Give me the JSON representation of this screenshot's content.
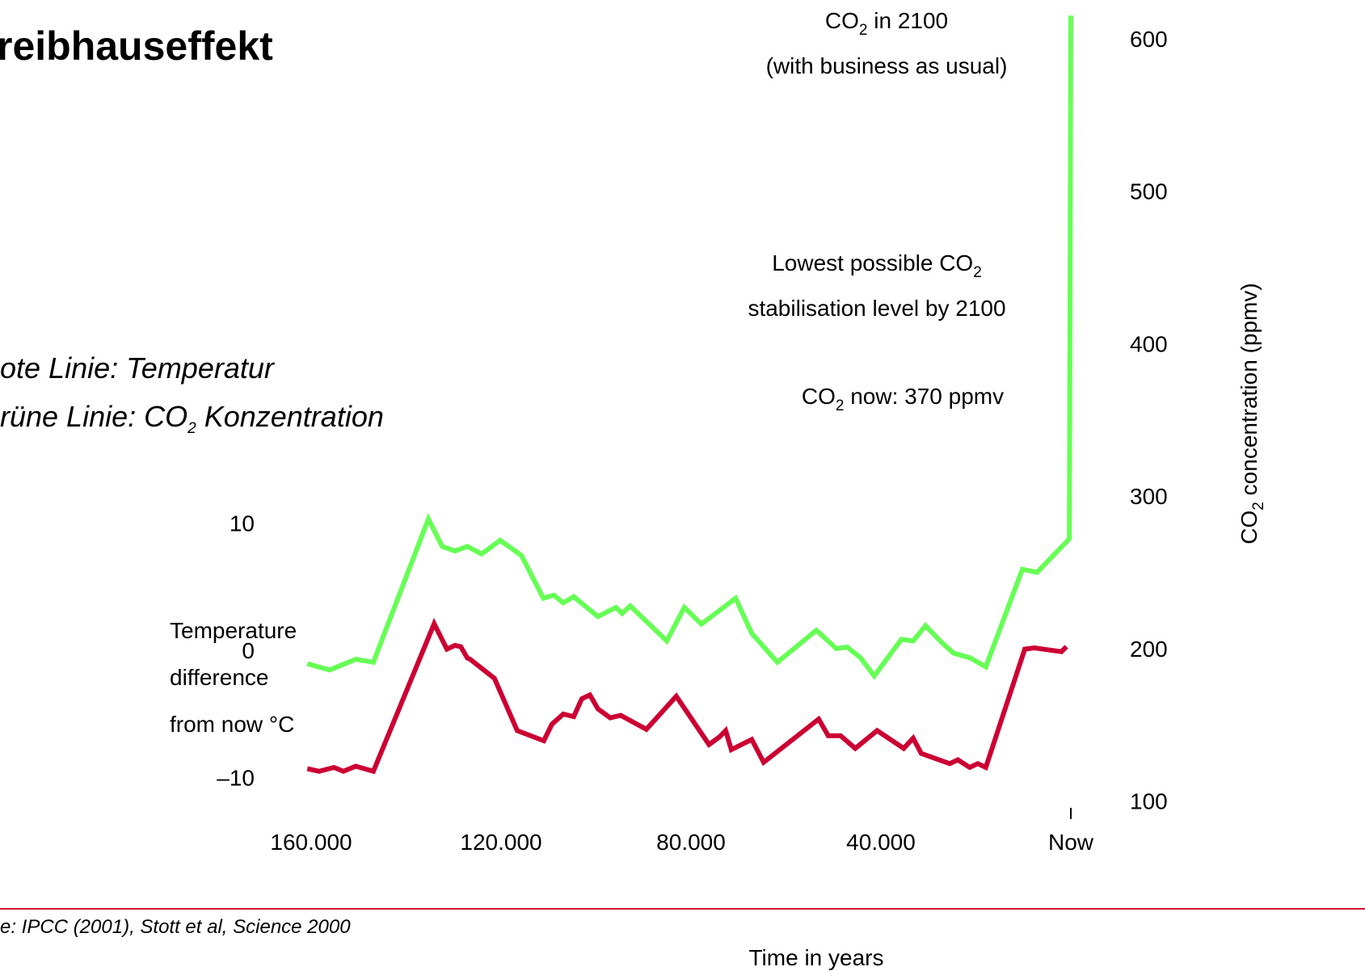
{
  "chart_data": {
    "type": "line",
    "title": "reibhauseffekt",
    "notes": [
      [
        "ote Linie: Temperatur"
      ],
      [
        "rüne Linie: CO",
        "2",
        " Konzentration"
      ]
    ],
    "xlabel": "Time in years",
    "ylabel": [
      "Temperature",
      "difference",
      "from now °C"
    ],
    "y2label": [
      "CO",
      "2",
      " concentration (ppmv)"
    ],
    "source": "e: IPCC (2001), Stott et al, Science 2000",
    "annotations": [
      {
        "lines": [
          [
            "CO",
            "2",
            " in 2100"
          ],
          [
            "(with business as usual)"
          ]
        ]
      },
      {
        "lines": [
          [
            "Lowest possible CO",
            "2"
          ],
          [
            "stabilisation level by 2100"
          ]
        ]
      },
      {
        "lines": [
          [
            "CO",
            "2",
            " now: 370 ppmv"
          ]
        ]
      }
    ],
    "xlim": [
      160000,
      0
    ],
    "xticks": [
      {
        "value": 160000,
        "label": "160.000"
      },
      {
        "value": 120000,
        "label": "120.000"
      },
      {
        "value": 80000,
        "label": "80.000"
      },
      {
        "value": 40000,
        "label": "40.000"
      },
      {
        "value": 0,
        "label": "Now"
      }
    ],
    "ylim": [
      -12.5,
      50.5
    ],
    "yticks": [
      {
        "value": -10,
        "label": "–10"
      },
      0,
      10
    ],
    "y2lim": [
      94.5,
      620
    ],
    "y2ticks": [
      100,
      200,
      300,
      400,
      500,
      600
    ],
    "series": [
      {
        "name": "CO2",
        "color": "#66ff55",
        "axis": "y2",
        "x": [
          160800,
          156100,
          150600,
          146900,
          135300,
          132400,
          129700,
          127100,
          124100,
          120200,
          115700,
          111100,
          108900,
          106900,
          104700,
          99600,
          95800,
          94500,
          92800,
          85100,
          81400,
          77800,
          70600,
          67200,
          61800,
          53600,
          49400,
          47100,
          44300,
          41400,
          35700,
          33200,
          30600,
          27200,
          24700,
          21300,
          17900,
          10200,
          7100,
          300,
          0
        ],
        "values": [
          190,
          186,
          193,
          191,
          285,
          267,
          264,
          267,
          262,
          271,
          261,
          233,
          235,
          230,
          234,
          221,
          227,
          223,
          228,
          205,
          227,
          216,
          233,
          210,
          191,
          212,
          200,
          201,
          194,
          182,
          206,
          205,
          215,
          204,
          197,
          194,
          188,
          252,
          250,
          272,
          615
        ]
      },
      {
        "name": "Temperature",
        "color": "#cc0033",
        "x": [
          160800,
          158300,
          155200,
          153200,
          150600,
          146900,
          134100,
          131400,
          129700,
          128500,
          127100,
          126500,
          121400,
          116600,
          111000,
          109300,
          106900,
          104700,
          103000,
          101300,
          99600,
          97000,
          94800,
          89400,
          83100,
          76200,
          74000,
          72700,
          71500,
          67200,
          64700,
          53100,
          51100,
          48500,
          45400,
          40800,
          35200,
          33200,
          31500,
          25500,
          23800,
          21300,
          19600,
          17900,
          9700,
          7700,
          2000,
          900
        ],
        "values": [
          -9.3,
          -9.5,
          -9.2,
          -9.5,
          -9.1,
          -9.5,
          2.1,
          0.1,
          0.4,
          0.3,
          -0.6,
          -0.7,
          -2.2,
          -6.3,
          -7.1,
          -5.8,
          -5.0,
          -5.2,
          -3.8,
          -3.5,
          -4.6,
          -5.3,
          -5.1,
          -6.2,
          -3.6,
          -7.4,
          -6.8,
          -6.3,
          -7.8,
          -7.0,
          -8.8,
          -5.4,
          -6.7,
          -6.7,
          -7.7,
          -6.3,
          -7.7,
          -6.9,
          -8.1,
          -8.9,
          -8.6,
          -9.2,
          -8.9,
          -9.2,
          0.1,
          0.2,
          -0.1,
          0.3
        ]
      }
    ]
  }
}
